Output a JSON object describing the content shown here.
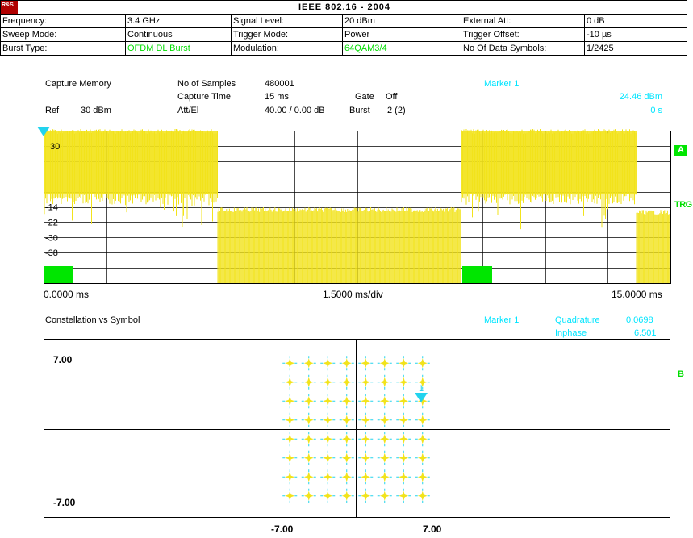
{
  "logo_text": "R&S",
  "title": "IEEE 802.16 - 2004",
  "settings": {
    "rows": [
      [
        {
          "label": "Frequency:",
          "value": "3.4 GHz"
        },
        {
          "label": "Signal Level:",
          "value": "20 dBm"
        },
        {
          "label": "External Att:",
          "value": "0 dB"
        }
      ],
      [
        {
          "label": "Sweep Mode:",
          "value": "Continuous"
        },
        {
          "label": "Trigger Mode:",
          "value": "Power"
        },
        {
          "label": "Trigger Offset:",
          "value": "-10 µs"
        }
      ],
      [
        {
          "label": "Burst Type:",
          "value": "OFDM DL Burst"
        },
        {
          "label": "Modulation:",
          "value": "64QAM3/4"
        },
        {
          "label": "No Of Data Symbols:",
          "value": "1/2425"
        }
      ]
    ]
  },
  "capture": {
    "title": "Capture Memory",
    "samples_label": "No of Samples",
    "samples_value": "480001",
    "capture_time_label": "Capture Time",
    "capture_time_value": "15 ms",
    "gate_label": "Gate",
    "gate_value": "Off",
    "ref_label": "Ref",
    "ref_value": "30 dBm",
    "att_label": "Att/El",
    "att_value": "40.00 / 0.00 dB",
    "burst_label": "Burst",
    "burst_value": "2 (2)",
    "marker_label": "Marker  1",
    "marker_level": "24.46 dBm",
    "marker_time": "0 s",
    "y_ticks": [
      "30",
      "-14",
      "-22",
      "-30",
      "-38"
    ],
    "x_start": "0.0000 ms",
    "x_div": "1.5000 ms/div",
    "x_end": "15.0000 ms",
    "screen_label": "A",
    "trg_label": "TRG",
    "colors": {
      "trace": "#f2e31b",
      "burst_marker": "#00e600",
      "marker": "#22d3ee"
    }
  },
  "constellation": {
    "title": "Constellation vs Symbol",
    "marker_label": "Marker  1",
    "quadrature_label": "Quadrature",
    "quadrature_value": "0.0698",
    "inphase_label": "Inphase",
    "inphase_value": "6.501",
    "y_top": "7.00",
    "y_bottom": "-7.00",
    "x_left": "-7.00",
    "x_right": "7.00",
    "screen_label": "B",
    "marker_number": "1",
    "grid_points_per_axis": 8
  }
}
